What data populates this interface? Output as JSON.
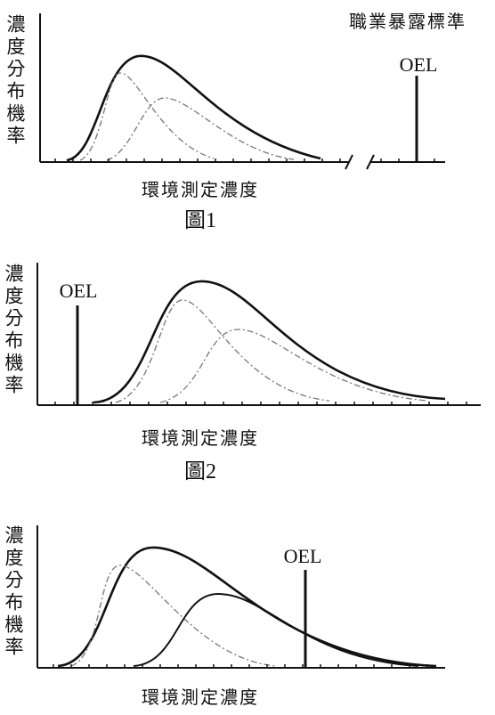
{
  "figures": [
    {
      "y_label": "濃度分布機率",
      "x_label": "環境測定濃度",
      "oel_label": "OEL",
      "annotation": "職業暴露標準",
      "caption": "圖1"
    },
    {
      "y_label": "濃度分布機率",
      "x_label": "環境測定濃度",
      "oel_label": "OEL",
      "caption": "圖2"
    },
    {
      "y_label": "濃度分布機率",
      "x_label": "環境測定濃度",
      "oel_label": "OEL"
    }
  ]
}
